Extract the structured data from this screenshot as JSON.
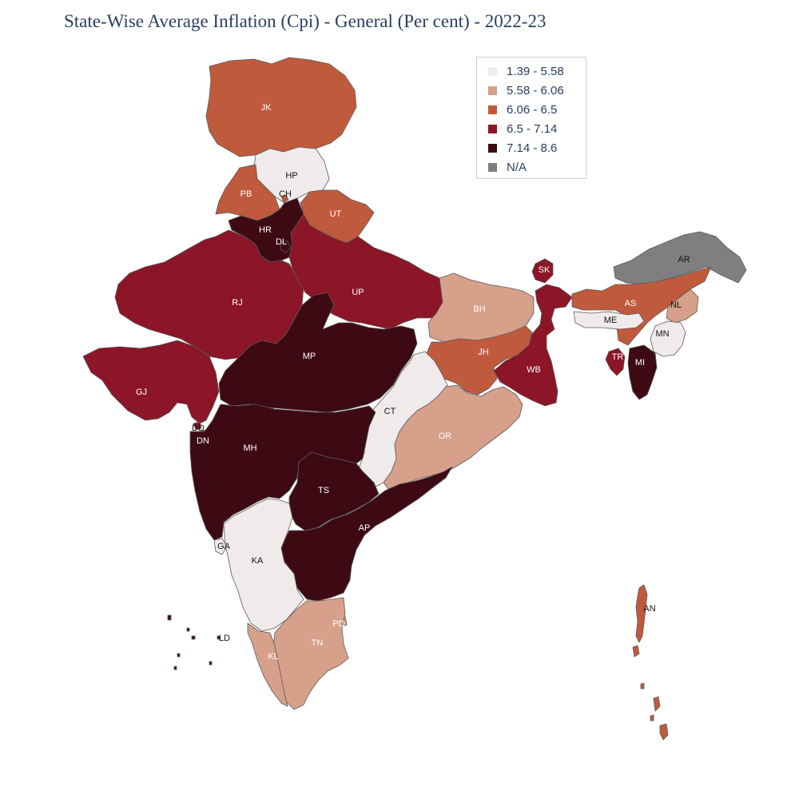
{
  "title": "State-Wise Average Inflation (Cpi) - General (Per cent) - 2022-23",
  "colors": {
    "c1": "#f0ebea",
    "c2": "#d6a08a",
    "c3": "#c05a3c",
    "c4": "#8c1528",
    "c5": "#3d0a13",
    "na": "#7f7f7f"
  },
  "legend": [
    {
      "label": "1.39 - 5.58",
      "color": "#f0ebea"
    },
    {
      "label": "5.58 - 6.06",
      "color": "#d6a08a"
    },
    {
      "label": "6.06 - 6.5",
      "color": "#c05a3c"
    },
    {
      "label": "6.5 - 7.14",
      "color": "#8c1528"
    },
    {
      "label": "7.14 - 8.6",
      "color": "#3d0a13"
    },
    {
      "label": "N/A",
      "color": "#7f7f7f"
    }
  ],
  "states": [
    {
      "code": "JK",
      "bin": "6.06 - 6.5"
    },
    {
      "code": "HP",
      "bin": "1.39 - 5.58"
    },
    {
      "code": "PB",
      "bin": "6.06 - 6.5"
    },
    {
      "code": "CH",
      "bin": "6.06 - 6.5"
    },
    {
      "code": "UT",
      "bin": "6.06 - 6.5"
    },
    {
      "code": "HR",
      "bin": "7.14 - 8.6"
    },
    {
      "code": "DL",
      "bin": "7.14 - 8.6"
    },
    {
      "code": "RJ",
      "bin": "6.5 - 7.14"
    },
    {
      "code": "UP",
      "bin": "6.5 - 7.14"
    },
    {
      "code": "BH",
      "bin": "5.58 - 6.06"
    },
    {
      "code": "SK",
      "bin": "6.5 - 7.14"
    },
    {
      "code": "AR",
      "bin": "N/A"
    },
    {
      "code": "AS",
      "bin": "6.06 - 6.5"
    },
    {
      "code": "NL",
      "bin": "5.58 - 6.06"
    },
    {
      "code": "ME",
      "bin": "1.39 - 5.58"
    },
    {
      "code": "MN",
      "bin": "1.39 - 5.58"
    },
    {
      "code": "TR",
      "bin": "6.5 - 7.14"
    },
    {
      "code": "MI",
      "bin": "7.14 - 8.6"
    },
    {
      "code": "JH",
      "bin": "6.06 - 6.5"
    },
    {
      "code": "WB",
      "bin": "6.5 - 7.14"
    },
    {
      "code": "GJ",
      "bin": "6.5 - 7.14"
    },
    {
      "code": "MP",
      "bin": "7.14 - 8.6"
    },
    {
      "code": "CT",
      "bin": "1.39 - 5.58"
    },
    {
      "code": "OR",
      "bin": "5.58 - 6.06"
    },
    {
      "code": "DD",
      "bin": "6.5 - 7.14"
    },
    {
      "code": "DN",
      "bin": "6.5 - 7.14"
    },
    {
      "code": "MH",
      "bin": "7.14 - 8.6"
    },
    {
      "code": "TS",
      "bin": "7.14 - 8.6"
    },
    {
      "code": "AP",
      "bin": "7.14 - 8.6"
    },
    {
      "code": "GA",
      "bin": "1.39 - 5.58"
    },
    {
      "code": "KA",
      "bin": "1.39 - 5.58"
    },
    {
      "code": "PD",
      "bin": "5.58 - 6.06"
    },
    {
      "code": "TN",
      "bin": "5.58 - 6.06"
    },
    {
      "code": "KL",
      "bin": "5.58 - 6.06"
    },
    {
      "code": "LD",
      "bin": "7.14 - 8.6"
    },
    {
      "code": "AN",
      "bin": "6.06 - 6.5"
    }
  ]
}
